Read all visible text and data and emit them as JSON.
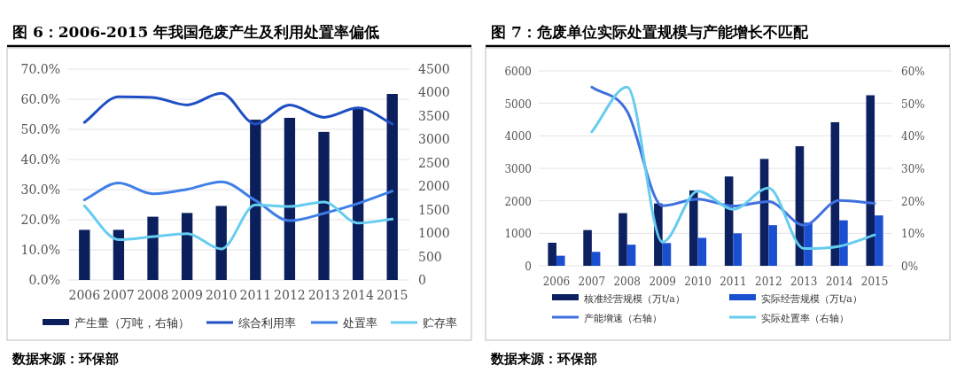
{
  "chart_data": [
    {
      "type": "bar",
      "title": "图 6：2006-2015 年我国危废产生及利用处置率偏低",
      "categories": [
        "2006",
        "2007",
        "2008",
        "2009",
        "2010",
        "2011",
        "2012",
        "2013",
        "2014",
        "2015"
      ],
      "series": [
        {
          "name": "产生量（万吨，右轴）",
          "axis": "y2",
          "color": "#0b1f5c",
          "values": [
            1070,
            1070,
            1350,
            1430,
            1580,
            3420,
            3460,
            3160,
            3660,
            3970
          ]
        },
        {
          "name": "综合利用率",
          "type": "line",
          "color": "#1f4fc4",
          "values": [
            52.3,
            60.8,
            60.6,
            58.1,
            62.0,
            51.8,
            58.1,
            54.0,
            57.1,
            51.8
          ]
        },
        {
          "name": "处置率",
          "type": "line",
          "color": "#3f7fe8",
          "values": [
            26.6,
            32.2,
            28.6,
            30.1,
            32.6,
            26.4,
            19.7,
            22.1,
            25.4,
            29.5
          ]
        },
        {
          "name": "贮存率",
          "type": "line",
          "color": "#66cdf0",
          "values": [
            24.6,
            13.4,
            14.4,
            15.4,
            10.3,
            24.9,
            24.4,
            25.9,
            18.9,
            20.2
          ]
        }
      ],
      "ylim": [
        0,
        70
      ],
      "yticks": [
        {
          "value": 0,
          "label": "0.0%"
        },
        {
          "value": 10,
          "label": "10.0%"
        },
        {
          "value": 20,
          "label": "20.0%"
        },
        {
          "value": 30,
          "label": "30.0%"
        },
        {
          "value": 40,
          "label": "40.0%"
        },
        {
          "value": 50,
          "label": "50.0%"
        },
        {
          "value": 60,
          "label": "60.0%"
        },
        {
          "value": 70,
          "label": "70.0%"
        }
      ],
      "y2lim": [
        0,
        4500
      ],
      "y2ticks": [
        0,
        500,
        1000,
        1500,
        2000,
        2500,
        3000,
        3500,
        4000,
        4500
      ],
      "grid": "y",
      "legend": "bottom",
      "annotations": [
        "数据来源：环保部"
      ]
    },
    {
      "type": "bar",
      "title": "图 7：危废单位实际处置规模与产能增长不匹配",
      "categories": [
        "2006",
        "2007",
        "2008",
        "2009",
        "2010",
        "2011",
        "2012",
        "2013",
        "2014",
        "2015"
      ],
      "series": [
        {
          "name": "核准经营规模（万t/a）",
          "color": "#0d2160",
          "values": [
            710,
            1100,
            1620,
            1920,
            2320,
            2750,
            3290,
            3680,
            4420,
            5250
          ]
        },
        {
          "name": "实际经营规模（万t/a）",
          "color": "#1a4fcf",
          "values": [
            310,
            430,
            650,
            700,
            860,
            1000,
            1250,
            1330,
            1400,
            1550
          ]
        },
        {
          "name": "产能增速（右轴）",
          "type": "line",
          "axis": "y2",
          "color": "#4070e0",
          "values": [
            null,
            55.0,
            47.5,
            18.5,
            20.5,
            18.4,
            19.8,
            12.5,
            20.1,
            19.2
          ]
        },
        {
          "name": "实际处置率（右轴）",
          "type": "line",
          "axis": "y2",
          "color": "#66ccee",
          "values": [
            null,
            41.2,
            55,
            7.3,
            23.0,
            17.4,
            23.9,
            5.3,
            6.0,
            9.5
          ]
        }
      ],
      "ylim": [
        0,
        6000
      ],
      "yticks": [
        0,
        1000,
        2000,
        3000,
        4000,
        5000,
        6000
      ],
      "y2lim": [
        0,
        60
      ],
      "y2ticks": [
        {
          "value": 0,
          "label": "0%"
        },
        {
          "value": 10,
          "label": "10%"
        },
        {
          "value": 20,
          "label": "20%"
        },
        {
          "value": 30,
          "label": "30%"
        },
        {
          "value": 40,
          "label": "40%"
        },
        {
          "value": 50,
          "label": "50%"
        },
        {
          "value": 60,
          "label": "60%"
        }
      ],
      "grid": "y",
      "legend": "bottom",
      "annotations": [
        "数据来源：环保部"
      ]
    }
  ]
}
